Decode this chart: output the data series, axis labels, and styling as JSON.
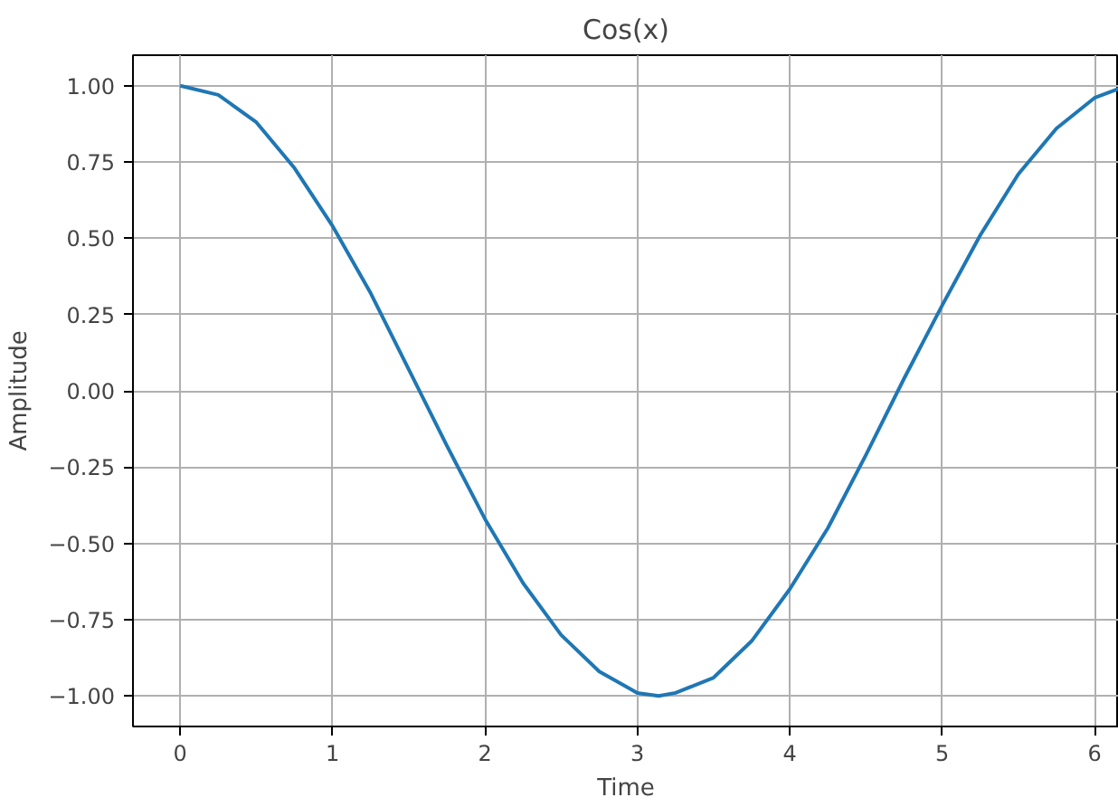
{
  "chart_data": {
    "type": "line",
    "title": "Cos(x)",
    "xlabel": "Time",
    "ylabel": "Amplitude",
    "x": [
      0,
      0.25,
      0.5,
      0.75,
      1,
      1.25,
      1.5,
      1.75,
      2,
      2.25,
      2.5,
      2.75,
      3,
      3.14,
      3.25,
      3.5,
      3.75,
      4,
      4.25,
      4.5,
      4.75,
      5,
      5.25,
      5.5,
      5.75,
      6,
      6.16
    ],
    "series": [
      {
        "color": "#1f77b4",
        "values": [
          1.0,
          0.97,
          0.88,
          0.73,
          0.54,
          0.32,
          0.07,
          -0.18,
          -0.42,
          -0.63,
          -0.8,
          -0.92,
          -0.99,
          -1.0,
          -0.99,
          -0.94,
          -0.82,
          -0.65,
          -0.45,
          -0.21,
          0.04,
          0.28,
          0.51,
          0.71,
          0.86,
          0.96,
          0.99
        ]
      }
    ],
    "xlim": [
      -0.31,
      6.16
    ],
    "ylim": [
      -1.1,
      1.1
    ],
    "xticks": [
      0,
      1,
      2,
      3,
      4,
      5,
      6
    ],
    "yticks": [
      {
        "value": 1,
        "label": "1.00"
      },
      {
        "value": 0.75,
        "label": "0.75"
      },
      {
        "value": 0.5,
        "label": "0.50"
      },
      {
        "value": 0.25,
        "label": "0.25"
      },
      {
        "value": 0,
        "label": "0.00"
      },
      {
        "value": -0.25,
        "label": "−0.25"
      },
      {
        "value": -0.5,
        "label": "−0.50"
      },
      {
        "value": -0.75,
        "label": "−0.75"
      },
      {
        "value": -1,
        "label": "−1.00"
      }
    ],
    "grid": true
  }
}
